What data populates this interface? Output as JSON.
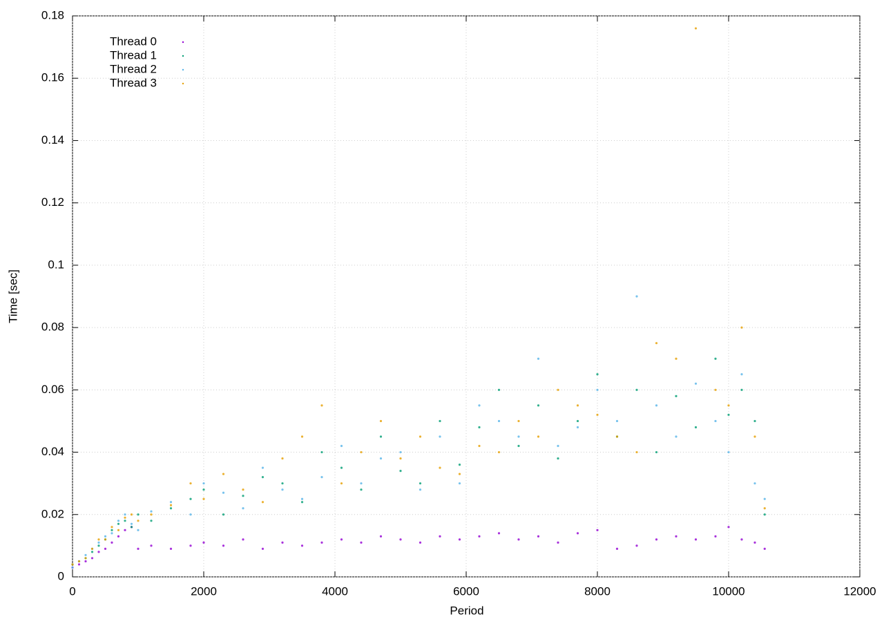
{
  "chart_data": {
    "type": "scatter",
    "x_label": "Period",
    "y_label": "Time [sec]",
    "x": [
      0,
      100,
      200,
      300,
      400,
      500,
      600,
      700,
      800,
      900,
      1000,
      1200,
      1500,
      1800,
      2000,
      2300,
      2600,
      2900,
      3200,
      3500,
      3800,
      4100,
      4400,
      4700,
      5000,
      5300,
      5600,
      5900,
      6200,
      6500,
      6800,
      7100,
      7400,
      7700,
      8000,
      8300,
      8600,
      8900,
      9200,
      9500,
      9800,
      10000,
      10200,
      10400,
      10550
    ],
    "series": [
      {
        "name": "Thread 0",
        "color": "#9400d3",
        "values": [
          0.003,
          0.004,
          0.005,
          0.006,
          0.008,
          0.009,
          0.011,
          0.013,
          0.015,
          0.016,
          0.009,
          0.01,
          0.009,
          0.01,
          0.011,
          0.01,
          0.012,
          0.009,
          0.011,
          0.01,
          0.011,
          0.012,
          0.011,
          0.013,
          0.012,
          0.011,
          0.013,
          0.012,
          0.013,
          0.014,
          0.012,
          0.013,
          0.011,
          0.014,
          0.015,
          0.009,
          0.01,
          0.012,
          0.013,
          0.012,
          0.013,
          0.016,
          0.012,
          0.011,
          0.009
        ]
      },
      {
        "name": "Thread 1",
        "color": "#009e73",
        "values": [
          0.004,
          0.005,
          0.006,
          0.008,
          0.01,
          0.012,
          0.015,
          0.017,
          0.018,
          0.016,
          0.02,
          0.018,
          0.022,
          0.025,
          0.028,
          0.02,
          0.026,
          0.032,
          0.03,
          0.024,
          0.04,
          0.035,
          0.028,
          0.045,
          0.034,
          0.03,
          0.05,
          0.036,
          0.048,
          0.06,
          0.042,
          0.055,
          0.038,
          0.05,
          0.065,
          0.045,
          0.06,
          0.04,
          0.058,
          0.048,
          0.07,
          0.052,
          0.06,
          0.05,
          0.02
        ]
      },
      {
        "name": "Thread 2",
        "color": "#56b4e9",
        "values": [
          0.003,
          0.005,
          0.007,
          0.009,
          0.011,
          0.013,
          0.014,
          0.018,
          0.02,
          0.017,
          0.015,
          0.021,
          0.024,
          0.02,
          0.03,
          0.027,
          0.022,
          0.035,
          0.028,
          0.025,
          0.032,
          0.042,
          0.03,
          0.038,
          0.04,
          0.028,
          0.045,
          0.03,
          0.055,
          0.05,
          0.045,
          0.07,
          0.042,
          0.048,
          0.06,
          0.05,
          0.09,
          0.055,
          0.045,
          0.062,
          0.05,
          0.04,
          0.065,
          0.03,
          0.025
        ]
      },
      {
        "name": "Thread 3",
        "color": "#e69f00",
        "values": [
          0.004,
          0.005,
          0.006,
          0.009,
          0.012,
          0.012,
          0.016,
          0.015,
          0.019,
          0.02,
          0.018,
          0.02,
          0.023,
          0.03,
          0.025,
          0.033,
          0.028,
          0.024,
          0.038,
          0.045,
          0.055,
          0.03,
          0.04,
          0.05,
          0.038,
          0.045,
          0.035,
          0.033,
          0.042,
          0.04,
          0.05,
          0.045,
          0.06,
          0.055,
          0.052,
          0.045,
          0.04,
          0.075,
          0.07,
          0.176,
          0.06,
          0.055,
          0.08,
          0.045,
          0.022
        ]
      }
    ],
    "xlim": [
      0,
      12000
    ],
    "xticks": [
      0,
      2000,
      4000,
      6000,
      8000,
      10000,
      12000
    ],
    "ylim": [
      0,
      0.18
    ],
    "yticks": [
      0,
      0.02,
      0.04,
      0.06,
      0.08,
      0.1,
      0.12,
      0.14,
      0.16,
      0.18
    ],
    "grid": true,
    "legend": "top-left"
  }
}
